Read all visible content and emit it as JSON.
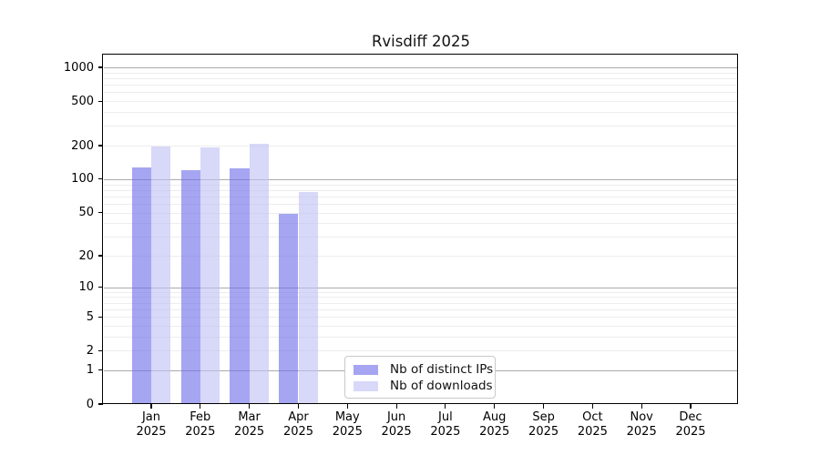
{
  "chart_data": {
    "type": "bar",
    "title": "Rvisdiff 2025",
    "year": "2025",
    "categories": [
      "Jan",
      "Feb",
      "Mar",
      "Apr",
      "May",
      "Jun",
      "Jul",
      "Aug",
      "Sep",
      "Oct",
      "Nov",
      "Dec"
    ],
    "series": [
      {
        "name": "Nb of distinct IPs",
        "legend_color": "#a5a5f2",
        "bar_rgba": "rgba(110,110,234,0.62)",
        "values": [
          128,
          120,
          125,
          49,
          0,
          0,
          0,
          0,
          0,
          0,
          0,
          0
        ]
      },
      {
        "name": "Nb of downloads",
        "legend_color": "#d8d8f8",
        "bar_rgba": "rgba(192,192,244,0.62)",
        "values": [
          197,
          193,
          208,
          76,
          0,
          0,
          0,
          0,
          0,
          0,
          0,
          0
        ]
      }
    ],
    "y_axis": {
      "scale": "log10(1+y)",
      "tick_values": [
        0,
        1,
        2,
        5,
        10,
        20,
        50,
        100,
        200,
        500,
        1000
      ],
      "major_gridline_values": [
        1,
        10,
        100,
        1000
      ],
      "minor_gridline_values": [
        2,
        3,
        4,
        5,
        6,
        7,
        8,
        9,
        20,
        30,
        40,
        50,
        60,
        70,
        80,
        90,
        200,
        300,
        400,
        500,
        600,
        700,
        800,
        900
      ],
      "ylim": [
        0,
        1000
      ]
    },
    "legend_position": "bottom-center",
    "grid": true,
    "colors": {
      "axis": "#000000",
      "major_grid": "#ababab",
      "minor_grid": "#ededed",
      "background": "#ffffff"
    }
  }
}
